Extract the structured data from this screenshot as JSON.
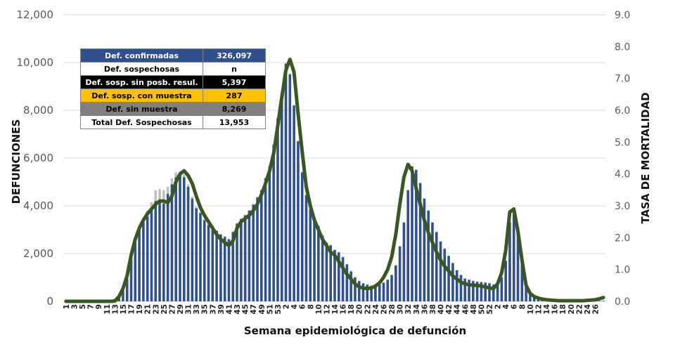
{
  "chart_data": {
    "type": "bar",
    "xlabel": "Semana epidemiológica de defunción",
    "ylabel": "DEFUNCIONES",
    "y2label": "TASA DE MORTALIDAD",
    "ylim": [
      0,
      12000
    ],
    "y2lim": [
      0,
      9
    ],
    "yticks": [
      "0",
      "2,000",
      "4,000",
      "6,000",
      "8,000",
      "10,000",
      "12,000"
    ],
    "y2ticks": [
      "0.0",
      "1.0",
      "2.0",
      "3.0",
      "4.0",
      "5.0",
      "6.0",
      "7.0",
      "8.0",
      "9.0"
    ],
    "x_tick_labels": [
      "1",
      "3",
      "5",
      "7",
      "9",
      "11",
      "13",
      "15",
      "17",
      "19",
      "21",
      "23",
      "25",
      "27",
      "29",
      "31",
      "33",
      "35",
      "37",
      "39",
      "41",
      "43",
      "45",
      "47",
      "49",
      "51",
      "53",
      "2",
      "4",
      "6",
      "8",
      "10",
      "12",
      "14",
      "16",
      "18",
      "20",
      "22",
      "24",
      "26",
      "28",
      "30",
      "32",
      "34",
      "36",
      "38",
      "40",
      "42",
      "44",
      "46",
      "48",
      "50",
      "52",
      "2",
      "4",
      "6",
      "8",
      "10",
      "12",
      "14",
      "16",
      "18",
      "20",
      "22",
      "24",
      "26"
    ],
    "deaths_confirmed": [
      0,
      0,
      0,
      0,
      0,
      0,
      0,
      0,
      0,
      0,
      0,
      0,
      50,
      200,
      450,
      950,
      1800,
      2500,
      3000,
      3300,
      3550,
      3850,
      4200,
      4200,
      4100,
      4500,
      4900,
      5200,
      5300,
      5200,
      4800,
      4300,
      3900,
      3700,
      3400,
      3200,
      3100,
      2950,
      2800,
      2700,
      2600,
      2900,
      3250,
      3450,
      3600,
      3800,
      4050,
      4350,
      4650,
      5150,
      5650,
      6550,
      7650,
      8650,
      9950,
      9500,
      8200,
      6700,
      5400,
      4450,
      3850,
      3450,
      3150,
      2750,
      2450,
      2350,
      2150,
      2050,
      1850,
      1550,
      1250,
      1000,
      850,
      750,
      700,
      650,
      650,
      700,
      780,
      900,
      1100,
      1500,
      2300,
      3300,
      4650,
      5650,
      5500,
      4950,
      4300,
      3800,
      3300,
      2900,
      2500,
      2200,
      1900,
      1600,
      1300,
      1100,
      950,
      900,
      850,
      820,
      800,
      780,
      750,
      700,
      700,
      1000,
      1700,
      3300,
      3750,
      3100,
      1800,
      600,
      300,
      200,
      150,
      100,
      80,
      50,
      30,
      20,
      20,
      20,
      20,
      20,
      20,
      20,
      20,
      20,
      20,
      20,
      20
    ],
    "deaths_suspect": [
      0,
      0,
      0,
      0,
      0,
      0,
      0,
      0,
      0,
      0,
      0,
      0,
      0,
      10,
      20,
      30,
      60,
      100,
      150,
      200,
      250,
      300,
      450,
      500,
      550,
      300,
      250,
      200,
      150,
      120,
      100,
      80,
      60,
      50,
      40,
      40,
      30,
      30,
      30,
      30,
      30,
      30,
      30,
      30,
      30,
      30,
      30,
      30,
      30,
      30,
      30,
      30,
      30,
      30,
      30,
      30,
      30,
      30,
      30,
      30,
      20,
      20,
      20,
      20,
      20,
      20,
      20,
      20,
      20,
      20,
      20,
      20,
      20,
      20,
      20,
      20,
      20,
      20,
      20,
      20,
      20,
      20,
      20,
      20,
      20,
      20,
      20,
      20,
      20,
      20,
      20,
      20,
      20,
      20,
      20,
      20,
      20,
      20,
      20,
      20,
      20,
      20,
      20,
      20,
      20,
      20,
      20,
      20,
      20,
      20,
      20,
      20,
      20,
      20,
      20,
      20,
      20,
      20,
      20,
      20,
      20,
      20,
      20,
      20,
      20,
      20,
      20,
      20,
      20,
      20,
      20,
      20,
      20
    ],
    "mortality_rate": [
      0,
      0,
      0,
      0,
      0,
      0,
      0,
      0,
      0,
      0,
      0,
      0,
      0.01,
      0.15,
      0.4,
      0.8,
      1.45,
      1.95,
      2.3,
      2.55,
      2.75,
      2.9,
      3.05,
      3.15,
      3.15,
      3.1,
      3.3,
      3.75,
      4,
      4.1,
      3.95,
      3.7,
      3.3,
      2.95,
      2.7,
      2.5,
      2.3,
      2.1,
      1.95,
      1.85,
      1.75,
      1.9,
      2.3,
      2.5,
      2.6,
      2.7,
      2.85,
      3.05,
      3.35,
      3.7,
      4.1,
      4.65,
      5.5,
      6.4,
      7.25,
      7.6,
      7.2,
      5.9,
      4.7,
      3.6,
      3.0,
      2.55,
      2.25,
      1.95,
      1.75,
      1.55,
      1.45,
      1.25,
      1.05,
      0.85,
      0.7,
      0.55,
      0.45,
      0.42,
      0.4,
      0.42,
      0.48,
      0.58,
      0.75,
      1.0,
      1.4,
      2.1,
      3.05,
      3.9,
      4.3,
      4.1,
      3.55,
      3.05,
      2.55,
      2.15,
      1.85,
      1.55,
      1.3,
      1.1,
      0.95,
      0.8,
      0.7,
      0.6,
      0.55,
      0.52,
      0.5,
      0.5,
      0.48,
      0.45,
      0.42,
      0.4,
      0.55,
      0.9,
      1.6,
      2.8,
      2.9,
      2.2,
      1.3,
      0.5,
      0.25,
      0.15,
      0.1,
      0.07,
      0.05,
      0.04,
      0.03,
      0.02,
      0.02,
      0.02,
      0.02,
      0.02,
      0.02,
      0.02,
      0.03,
      0.04,
      0.05,
      0.08,
      0.12
    ]
  },
  "summary_table": [
    {
      "label": "Def. confirmadas",
      "value": "326,097",
      "style": "conf"
    },
    {
      "label": "Def. sospechosas",
      "value": "n",
      "style": "susp"
    },
    {
      "label": "Def. sosp. sin posb. resul.",
      "value": "5,397",
      "style": "sin"
    },
    {
      "label": "Def. sosp. con  muestra",
      "value": "287",
      "style": "con"
    },
    {
      "label": "Def. sin muestra",
      "value": "8,269",
      "style": "nom"
    },
    {
      "label": "Total Def. Sospechosas",
      "value": "13,953",
      "style": "tot"
    }
  ],
  "colors": {
    "bar_confirmed": "#2f4f8f",
    "bar_suspect": "#bfbfbf",
    "rate_line": "#385723",
    "gridline": "#d9d9d9"
  }
}
